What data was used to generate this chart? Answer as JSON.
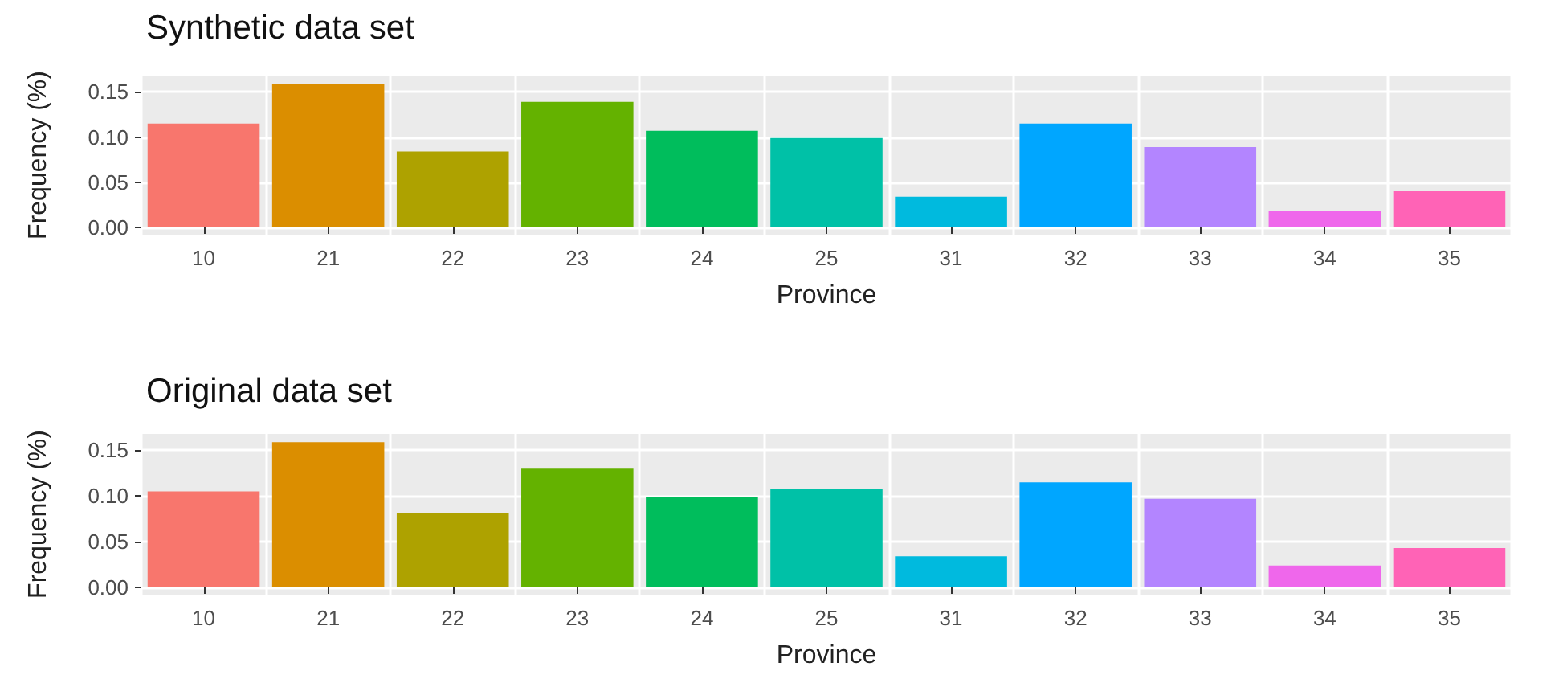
{
  "chart_data": [
    {
      "type": "bar",
      "title": "Synthetic data set",
      "xlabel": "Province",
      "ylabel": "Frequency (%)",
      "categories": [
        "10",
        "21",
        "22",
        "23",
        "24",
        "25",
        "31",
        "32",
        "33",
        "34",
        "35"
      ],
      "values": [
        0.115,
        0.159,
        0.084,
        0.139,
        0.107,
        0.099,
        0.034,
        0.115,
        0.089,
        0.018,
        0.04
      ],
      "colors": [
        "#f8766d",
        "#db8e00",
        "#aea200",
        "#64b200",
        "#00bd5c",
        "#00c1a7",
        "#00bade",
        "#00a6ff",
        "#b385ff",
        "#ef67eb",
        "#ff63b6"
      ],
      "ylim": [
        -0.008,
        0.168
      ],
      "yticks": [
        {
          "value": 0,
          "label": "0.00"
        },
        {
          "value": 0.05,
          "label": "0.05"
        },
        {
          "value": 0.1,
          "label": "0.10"
        },
        {
          "value": 0.15,
          "label": "0.15"
        }
      ],
      "grid": true
    },
    {
      "type": "bar",
      "title": "Original data set",
      "xlabel": "Province",
      "ylabel": "Frequency (%)",
      "categories": [
        "10",
        "21",
        "22",
        "23",
        "24",
        "25",
        "31",
        "32",
        "33",
        "34",
        "35"
      ],
      "values": [
        0.105,
        0.159,
        0.081,
        0.13,
        0.099,
        0.108,
        0.034,
        0.115,
        0.097,
        0.024,
        0.043
      ],
      "colors": [
        "#f8766d",
        "#db8e00",
        "#aea200",
        "#64b200",
        "#00bd5c",
        "#00c1a7",
        "#00bade",
        "#00a6ff",
        "#b385ff",
        "#ef67eb",
        "#ff63b6"
      ],
      "ylim": [
        -0.008,
        0.168
      ],
      "yticks": [
        {
          "value": 0,
          "label": "0.00"
        },
        {
          "value": 0.05,
          "label": "0.05"
        },
        {
          "value": 0.1,
          "label": "0.10"
        },
        {
          "value": 0.15,
          "label": "0.15"
        }
      ],
      "grid": true
    }
  ]
}
